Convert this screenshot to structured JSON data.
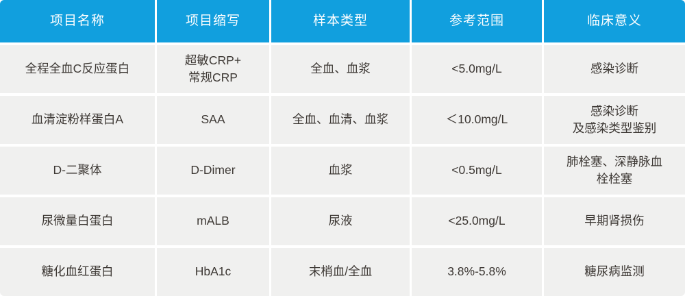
{
  "colors": {
    "header_bg": "#119fde",
    "header_text": "#ffffff",
    "row_bg": "#f0f0ef",
    "body_text": "#3d3834"
  },
  "table": {
    "columns": [
      {
        "label": "项目名称"
      },
      {
        "label": "项目缩写"
      },
      {
        "label": "样本类型"
      },
      {
        "label": "参考范围"
      },
      {
        "label": "临床意义"
      }
    ],
    "rows": [
      {
        "cells": [
          "全程全血C反应蛋白",
          "超敏CRP+\n常规CRP",
          "全血、血浆",
          "<5.0mg/L",
          "感染诊断"
        ]
      },
      {
        "cells": [
          "血清淀粉样蛋白A",
          "SAA",
          "全血、血清、血浆",
          "＜10.0mg/L",
          "感染诊断\n及感染类型鉴别"
        ]
      },
      {
        "cells": [
          "D-二聚体",
          "D-Dimer",
          "血浆",
          "<0.5mg/L",
          "肺栓塞、深静脉血\n栓栓塞"
        ]
      },
      {
        "cells": [
          "尿微量白蛋白",
          "mALB",
          "尿液",
          "<25.0mg/L",
          "早期肾损伤"
        ]
      },
      {
        "cells": [
          "糖化血红蛋白",
          "HbA1c",
          "末梢血/全血",
          "3.8%-5.8%",
          "糖尿病监测"
        ]
      }
    ]
  },
  "chart_data": {
    "type": "table",
    "columns": [
      "项目名称",
      "项目缩写",
      "样本类型",
      "参考范围",
      "临床意义"
    ],
    "rows": [
      [
        "全程全血C反应蛋白",
        "超敏CRP+ 常规CRP",
        "全血、血浆",
        "<5.0mg/L",
        "感染诊断"
      ],
      [
        "血清淀粉样蛋白A",
        "SAA",
        "全血、血清、血浆",
        "＜10.0mg/L",
        "感染诊断 及感染类型鉴别"
      ],
      [
        "D-二聚体",
        "D-Dimer",
        "血浆",
        "<0.5mg/L",
        "肺栓塞、深静脉血 栓栓塞"
      ],
      [
        "尿微量白蛋白",
        "mALB",
        "尿液",
        "<25.0mg/L",
        "早期肾损伤"
      ],
      [
        "糖化血红蛋白",
        "HbA1c",
        "末梢血/全血",
        "3.8%-5.8%",
        "糖尿病监测"
      ]
    ]
  }
}
